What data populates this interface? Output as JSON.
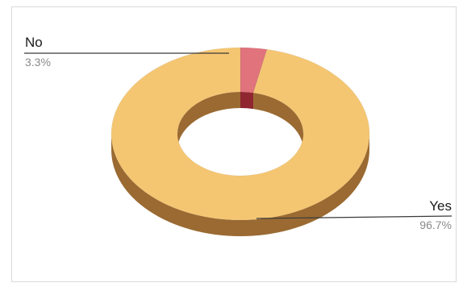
{
  "chart_data": {
    "type": "pie",
    "style": "3d-donut",
    "categories": [
      "No",
      "Yes"
    ],
    "values": [
      3.3,
      96.7
    ],
    "value_labels": [
      "3.3%",
      "96.7%"
    ],
    "colors": {
      "No": {
        "top": "#e0737c",
        "side": "#8f2630"
      },
      "Yes": {
        "top": "#f5c672",
        "side": "#9a6a32"
      }
    },
    "legend": "none",
    "labels_position": "outside-with-leader-lines"
  }
}
